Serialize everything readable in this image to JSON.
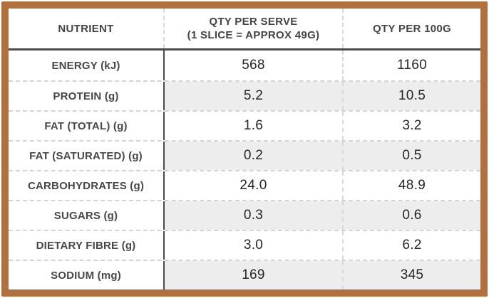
{
  "colors": {
    "frame_brown": "#b2703f",
    "dark_rule": "#4a4a4a",
    "shaded_row_bg": "#ededed",
    "dashed_divider": "#d9d9d9",
    "header_text": "#434343",
    "value_text": "#262626"
  },
  "table": {
    "header": {
      "nutrient": "NUTRIENT",
      "per_serve_line1": "QTY PER SERVE",
      "per_serve_line2": "(1 SLICE = APPROX 49G)",
      "per_100g": "QTY PER 100G"
    },
    "rows": [
      {
        "label": "ENERGY (kJ)",
        "per_serve": "568",
        "per_100g": "1160",
        "shaded": false
      },
      {
        "label": "PROTEIN (g)",
        "per_serve": "5.2",
        "per_100g": "10.5",
        "shaded": true
      },
      {
        "label": "FAT (TOTAL) (g)",
        "per_serve": "1.6",
        "per_100g": "3.2",
        "shaded": false
      },
      {
        "label": "FAT (SATURATED) (g)",
        "per_serve": "0.2",
        "per_100g": "0.5",
        "shaded": true
      },
      {
        "label": "CARBOHYDRATES (g)",
        "per_serve": "24.0",
        "per_100g": "48.9",
        "shaded": false
      },
      {
        "label": "SUGARS (g)",
        "per_serve": "0.3",
        "per_100g": "0.6",
        "shaded": true
      },
      {
        "label": "DIETARY FIBRE (g)",
        "per_serve": "3.0",
        "per_100g": "6.2",
        "shaded": false
      },
      {
        "label": "SODIUM (mg)",
        "per_serve": "169",
        "per_100g": "345",
        "shaded": true
      }
    ]
  },
  "chart_data": {
    "type": "table",
    "columns": [
      "NUTRIENT",
      "QTY PER SERVE (1 SLICE = APPROX 49G)",
      "QTY PER 100G"
    ],
    "rows": [
      [
        "ENERGY (kJ)",
        "568",
        "1160"
      ],
      [
        "PROTEIN (g)",
        "5.2",
        "10.5"
      ],
      [
        "FAT (TOTAL) (g)",
        "1.6",
        "3.2"
      ],
      [
        "FAT (SATURATED) (g)",
        "0.2",
        "0.5"
      ],
      [
        "CARBOHYDRATES (g)",
        "24.0",
        "48.9"
      ],
      [
        "SUGARS (g)",
        "0.3",
        "0.6"
      ],
      [
        "DIETARY FIBRE (g)",
        "3.0",
        "6.2"
      ],
      [
        "SODIUM (mg)",
        "169",
        "345"
      ]
    ],
    "layout": {
      "shaded_value_rows": [
        1,
        3,
        5,
        7
      ],
      "label_column_always_white": true,
      "frame_color": "#b2703f"
    }
  }
}
